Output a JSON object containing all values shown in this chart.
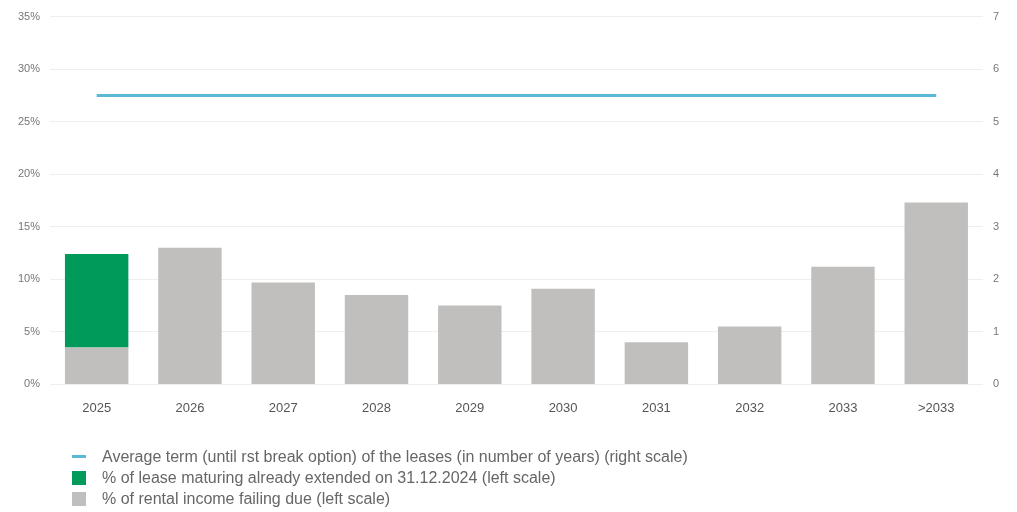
{
  "chart_data": {
    "type": "bar",
    "categories": [
      "2025",
      "2026",
      "2027",
      "2028",
      "2029",
      "2030",
      "2031",
      "2032",
      "2033",
      ">2033"
    ],
    "stacked": true,
    "series": [
      {
        "name": "% of rental income failing due (left scale)",
        "color": "#c0bfbe",
        "values": [
          3.5,
          13.0,
          9.7,
          8.5,
          7.5,
          9.1,
          4.0,
          5.5,
          11.2,
          17.3
        ]
      },
      {
        "name": "% of lease maturing already extended on 31.12.2024 (left scale)",
        "color": "#009a5a",
        "values": [
          8.9,
          null,
          null,
          null,
          null,
          null,
          null,
          null,
          null,
          null
        ]
      },
      {
        "name": "Average term (until rst break option) of the leases (in number of years) (right scale)",
        "type": "line",
        "axis": "y2",
        "color": "#5bb8d6",
        "marker": "none",
        "values": [
          5.5,
          5.5,
          5.5,
          5.5,
          5.5,
          5.5,
          5.5,
          5.5,
          5.5,
          5.5
        ]
      }
    ],
    "ylim": [
      0,
      35
    ],
    "yticks": [
      {
        "value": 0,
        "label": "0%"
      },
      {
        "value": 5,
        "label": "5%"
      },
      {
        "value": 10,
        "label": "10%"
      },
      {
        "value": 15,
        "label": "15%"
      },
      {
        "value": 20,
        "label": "20%"
      },
      {
        "value": 25,
        "label": "25%"
      },
      {
        "value": 30,
        "label": "30%"
      },
      {
        "value": 35,
        "label": "35%"
      }
    ],
    "y2lim": [
      0,
      7
    ],
    "y2ticks": [
      0,
      1,
      2,
      3,
      4,
      5,
      6,
      7
    ],
    "grid": "y",
    "legend": "bottom left"
  }
}
